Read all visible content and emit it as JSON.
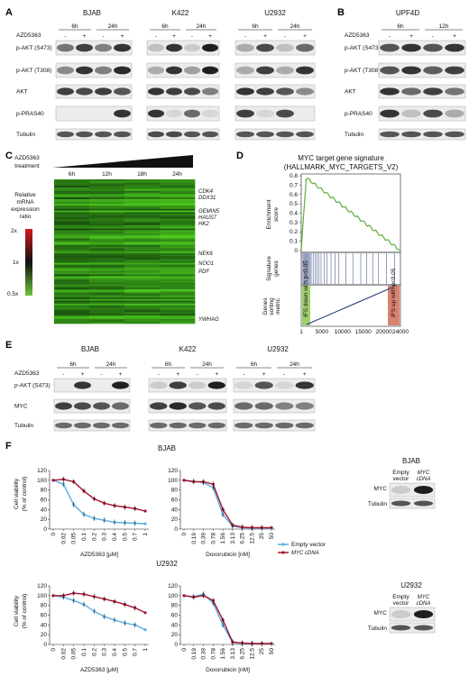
{
  "panels": [
    "A",
    "B",
    "C",
    "D",
    "E",
    "F"
  ],
  "A": {
    "cell_lines": [
      "BJAB",
      "K422",
      "U2932"
    ],
    "drug": "AZD5363",
    "times": [
      "6h",
      "24h"
    ],
    "signs": [
      "-",
      "+",
      "-",
      "+"
    ],
    "rows": [
      "p-AKT (S473)",
      "p-AKT (T308)",
      "AKT",
      "p-PRAS40",
      "Tubulin"
    ]
  },
  "B": {
    "cell_line": "UPF4D",
    "drug": "AZD5363",
    "times": [
      "6h",
      "12h"
    ],
    "signs": [
      "-",
      "+",
      "-",
      "+"
    ],
    "rows": [
      "p-AKT (S473)",
      "p-AKT (T308)",
      "AKT",
      "p-PRAS40",
      "Tubulin"
    ]
  },
  "C": {
    "drug_line1": "AZD5363",
    "drug_line2": "treatment",
    "times": [
      "6h",
      "12h",
      "18h",
      "24h"
    ],
    "legend_lines": [
      "Relative",
      "mRNA",
      "expression",
      "ratio"
    ],
    "scale": [
      "2x",
      "1x",
      "0.5x"
    ],
    "genes": [
      "CDK4",
      "DDX31",
      "GEMIN5",
      "HAUS7",
      "HK2",
      "NEK6",
      "NOO1",
      "PDF",
      "YWHAG"
    ]
  },
  "D": {
    "title1": "MYC target gene signature",
    "title2": "(HALLMARK_MYC_TARGETS_V2)",
    "ylabel_es1": "Enrichment",
    "ylabel_es2": "score",
    "yticks": [
      "0.8",
      "0.7",
      "0.6",
      "0.5",
      "0.4",
      "0.3",
      "0.2",
      "0.1",
      "0"
    ],
    "ylabel_sig1": "Signature",
    "ylabel_sig2": "genes",
    "ylabel_metric1": "Genes",
    "ylabel_metric2": "sorting",
    "ylabel_metric3": "metric",
    "xticks": [
      "1",
      "5000",
      "10000",
      "15000",
      "20000",
      "24000"
    ],
    "bar_left": "IFS down with p<0.05",
    "bar_right": "IFS up with p<0.05"
  },
  "E": {
    "cell_lines": [
      "BJAB",
      "K422",
      "U2932"
    ],
    "drug": "AZD5363",
    "times": [
      "6h",
      "24h"
    ],
    "signs": [
      "-",
      "+",
      "-",
      "+"
    ],
    "rows": [
      "p-AKT (S473)",
      "MYC",
      "Tubulin"
    ]
  },
  "F": {
    "row1_title": "BJAB",
    "row2_title": "U2932",
    "ylabel1": "Cell viability",
    "ylabel2": "(% of control)",
    "yticks": [
      "120",
      "100",
      "80",
      "60",
      "40",
      "20",
      "0"
    ],
    "xlabel_azd": "AZD5363 [μM]",
    "xlabel_dox": "Doxorubicin [nM]",
    "legend_empty": "Empty vector",
    "legend_myc": "MYC cDNA",
    "blot_rows": [
      "MYC",
      "Tubulin"
    ],
    "blot_cols": [
      [
        "Empty",
        "vector"
      ],
      [
        "MYC",
        "cDNA"
      ]
    ]
  },
  "chart_data": [
    {
      "type": "line",
      "title": "BJAB",
      "xlabel": "AZD5363 [μM]",
      "ylabel": "Cell viability (% of control)",
      "ylim": [
        0,
        120
      ],
      "x": [
        "0",
        "0.02",
        "0.05",
        "0.1",
        "0.2",
        "0.3",
        "0.4",
        "0.5",
        "0.7",
        "1"
      ],
      "series": [
        {
          "name": "Empty vector",
          "color": "#5aaee0",
          "values": [
            100,
            92,
            50,
            30,
            22,
            18,
            14,
            13,
            12,
            11
          ]
        },
        {
          "name": "MYC cDNA",
          "color": "#a3122c",
          "values": [
            100,
            102,
            97,
            78,
            62,
            53,
            48,
            45,
            42,
            37
          ]
        }
      ]
    },
    {
      "type": "line",
      "title": "BJAB",
      "xlabel": "Doxorubicin [nM]",
      "ylabel": "",
      "ylim": [
        0,
        120
      ],
      "x": [
        "0",
        "0.19",
        "0.39",
        "0.78",
        "1.56",
        "3.13",
        "6.25",
        "12.5",
        "25",
        "50"
      ],
      "series": [
        {
          "name": "Empty vector",
          "color": "#5aaee0",
          "values": [
            100,
            98,
            95,
            85,
            30,
            6,
            3,
            2,
            2,
            2
          ]
        },
        {
          "name": "MYC cDNA",
          "color": "#a3122c",
          "values": [
            100,
            97,
            97,
            92,
            40,
            8,
            4,
            3,
            3,
            3
          ]
        }
      ]
    },
    {
      "type": "line",
      "title": "U2932",
      "xlabel": "AZD5363 [μM]",
      "ylabel": "Cell viability (% of control)",
      "ylim": [
        0,
        120
      ],
      "x": [
        "0",
        "0.02",
        "0.05",
        "0.1",
        "0.2",
        "0.3",
        "0.4",
        "0.5",
        "0.7",
        "1"
      ],
      "series": [
        {
          "name": "Empty vector",
          "color": "#5aaee0",
          "values": [
            100,
            97,
            90,
            82,
            68,
            57,
            50,
            44,
            40,
            30
          ]
        },
        {
          "name": "MYC cDNA",
          "color": "#a3122c",
          "values": [
            100,
            100,
            105,
            103,
            98,
            93,
            88,
            82,
            75,
            65
          ]
        }
      ]
    },
    {
      "type": "line",
      "title": "U2932",
      "xlabel": "Doxorubicin [nM]",
      "ylabel": "",
      "ylim": [
        0,
        120
      ],
      "x": [
        "0",
        "0.19",
        "0.39",
        "0.78",
        "1.56",
        "3.13",
        "6.25",
        "12.5",
        "25",
        "50"
      ],
      "series": [
        {
          "name": "Empty vector",
          "color": "#5aaee0",
          "values": [
            100,
            98,
            103,
            85,
            40,
            4,
            2,
            2,
            2,
            2
          ]
        },
        {
          "name": "MYC cDNA",
          "color": "#a3122c",
          "values": [
            100,
            97,
            100,
            90,
            50,
            5,
            3,
            2,
            2,
            2
          ]
        }
      ]
    }
  ]
}
